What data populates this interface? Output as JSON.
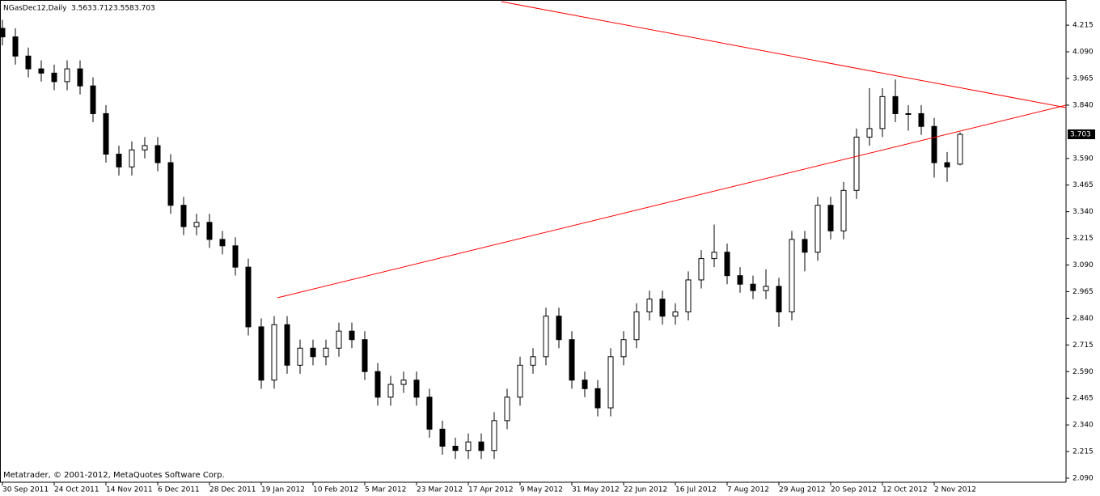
{
  "chart_data": {
    "type": "candlestick",
    "header": {
      "symbol": "NGasDec12,Daily"
    },
    "footer": "Metatrader, © 2001-2012, MetaQuotes Software Corp.",
    "up_color": "#ffffff",
    "down_color": "#000000",
    "wick_color": "#000000",
    "line_color": "#ff0000",
    "ylim": [
      2.071,
      4.333
    ],
    "yticks": [
      4.215,
      {
        "value": 4.09,
        "label": "4.090"
      },
      3.965,
      {
        "value": 3.84,
        "label": "3.840"
      },
      {
        "value": 3.59,
        "label": "3.590"
      },
      3.465,
      {
        "value": 3.34,
        "label": "3.340"
      },
      3.215,
      {
        "value": 3.09,
        "label": "3.090"
      },
      2.965,
      {
        "value": 2.84,
        "label": "2.840"
      },
      2.715,
      {
        "value": 2.59,
        "label": "2.590"
      },
      2.465,
      {
        "value": 2.34,
        "label": "2.340"
      },
      2.215,
      {
        "value": 2.09,
        "label": "2.090"
      }
    ],
    "categories": [
      "30 Sep 2011",
      null,
      null,
      null,
      "24 Oct 2011",
      null,
      null,
      null,
      "14 Nov 2011",
      null,
      null,
      null,
      "6 Dec 2011",
      null,
      null,
      null,
      "28 Dec 2011",
      null,
      null,
      null,
      "19 Jan 2012",
      null,
      null,
      null,
      "10 Feb 2012",
      null,
      null,
      null,
      "5 Mar 2012",
      null,
      null,
      null,
      "23 Mar 2012",
      null,
      null,
      null,
      "17 Apr 2012",
      null,
      null,
      null,
      "9 May 2012",
      null,
      null,
      null,
      "31 May 2012",
      null,
      null,
      null,
      "22 Jun 2012",
      null,
      null,
      null,
      "16 Jul 2012",
      null,
      null,
      null,
      "7 Aug 2012",
      null,
      null,
      null,
      "29 Aug 2012",
      null,
      null,
      null,
      "20 Sep 2012",
      null,
      null,
      null,
      "12 Oct 2012",
      null,
      null,
      null,
      "2 Nov 2012",
      null,
      null
    ],
    "ohlc": [
      [
        4.2,
        4.24,
        4.12,
        4.16
      ],
      [
        4.16,
        4.2,
        4.03,
        4.07
      ],
      [
        4.07,
        4.11,
        3.97,
        4.01
      ],
      [
        4.01,
        4.05,
        3.95,
        3.99
      ],
      [
        3.99,
        4.03,
        3.91,
        3.95
      ],
      [
        3.95,
        4.05,
        3.91,
        4.01
      ],
      [
        4.01,
        4.05,
        3.89,
        3.93
      ],
      [
        3.93,
        3.97,
        3.76,
        3.8
      ],
      [
        3.8,
        3.84,
        3.57,
        3.61
      ],
      [
        3.61,
        3.65,
        3.51,
        3.55
      ],
      [
        3.55,
        3.67,
        3.51,
        3.63
      ],
      [
        3.63,
        3.69,
        3.59,
        3.65
      ],
      [
        3.65,
        3.69,
        3.53,
        3.57
      ],
      [
        3.57,
        3.61,
        3.33,
        3.37
      ],
      [
        3.37,
        3.41,
        3.23,
        3.27
      ],
      [
        3.27,
        3.33,
        3.23,
        3.29
      ],
      [
        3.29,
        3.33,
        3.17,
        3.21
      ],
      [
        3.21,
        3.25,
        3.14,
        3.18
      ],
      [
        3.18,
        3.22,
        3.04,
        3.08
      ],
      [
        3.08,
        3.12,
        2.76,
        2.8
      ],
      [
        2.8,
        2.84,
        2.51,
        2.55
      ],
      [
        2.55,
        2.85,
        2.51,
        2.81
      ],
      [
        2.81,
        2.85,
        2.58,
        2.62
      ],
      [
        2.62,
        2.74,
        2.58,
        2.7
      ],
      [
        2.7,
        2.74,
        2.62,
        2.66
      ],
      [
        2.66,
        2.74,
        2.62,
        2.7
      ],
      [
        2.7,
        2.82,
        2.66,
        2.78
      ],
      [
        2.78,
        2.82,
        2.7,
        2.74
      ],
      [
        2.74,
        2.78,
        2.55,
        2.59
      ],
      [
        2.59,
        2.63,
        2.43,
        2.47
      ],
      [
        2.47,
        2.57,
        2.43,
        2.53
      ],
      [
        2.53,
        2.59,
        2.49,
        2.55
      ],
      [
        2.55,
        2.59,
        2.43,
        2.47
      ],
      [
        2.47,
        2.51,
        2.28,
        2.32
      ],
      [
        2.32,
        2.36,
        2.2,
        2.24
      ],
      [
        2.24,
        2.28,
        2.18,
        2.22
      ],
      [
        2.22,
        2.3,
        2.18,
        2.26
      ],
      [
        2.26,
        2.3,
        2.18,
        2.22
      ],
      [
        2.22,
        2.4,
        2.18,
        2.36
      ],
      [
        2.36,
        2.51,
        2.32,
        2.47
      ],
      [
        2.47,
        2.66,
        2.43,
        2.62
      ],
      [
        2.62,
        2.7,
        2.58,
        2.66
      ],
      [
        2.66,
        2.89,
        2.62,
        2.85
      ],
      [
        2.85,
        2.89,
        2.7,
        2.74
      ],
      [
        2.74,
        2.78,
        2.51,
        2.55
      ],
      [
        2.55,
        2.59,
        2.47,
        2.51
      ],
      [
        2.51,
        2.55,
        2.38,
        2.42
      ],
      [
        2.42,
        2.7,
        2.38,
        2.66
      ],
      [
        2.66,
        2.78,
        2.62,
        2.74
      ],
      [
        2.74,
        2.91,
        2.7,
        2.87
      ],
      [
        2.87,
        2.97,
        2.83,
        2.93
      ],
      [
        2.93,
        2.97,
        2.81,
        2.85
      ],
      [
        2.85,
        2.91,
        2.81,
        2.87
      ],
      [
        2.87,
        3.06,
        2.83,
        3.02
      ],
      [
        3.02,
        3.16,
        2.98,
        3.12
      ],
      [
        3.12,
        3.28,
        3.08,
        3.15
      ],
      [
        3.15,
        3.19,
        3.0,
        3.04
      ],
      [
        3.04,
        3.08,
        2.96,
        3.0
      ],
      [
        3.0,
        3.04,
        2.93,
        2.97
      ],
      [
        2.97,
        3.07,
        2.93,
        2.99
      ],
      [
        2.99,
        3.03,
        2.8,
        2.87
      ],
      [
        2.87,
        3.25,
        2.83,
        3.21
      ],
      [
        3.21,
        3.25,
        3.06,
        3.15
      ],
      [
        3.15,
        3.41,
        3.11,
        3.37
      ],
      [
        3.37,
        3.41,
        3.21,
        3.25
      ],
      [
        3.25,
        3.48,
        3.21,
        3.44
      ],
      [
        3.44,
        3.73,
        3.4,
        3.69
      ],
      [
        3.69,
        3.92,
        3.65,
        3.73
      ],
      [
        3.73,
        3.92,
        3.69,
        3.88
      ],
      [
        3.88,
        3.96,
        3.76,
        3.8
      ],
      [
        3.8,
        3.84,
        3.72,
        3.8
      ],
      [
        3.8,
        3.84,
        3.7,
        3.74
      ],
      [
        3.74,
        3.78,
        3.5,
        3.57
      ],
      [
        3.57,
        3.62,
        3.48,
        3.55
      ],
      [
        3.563,
        3.712,
        3.558,
        3.703
      ]
    ]
  }
}
